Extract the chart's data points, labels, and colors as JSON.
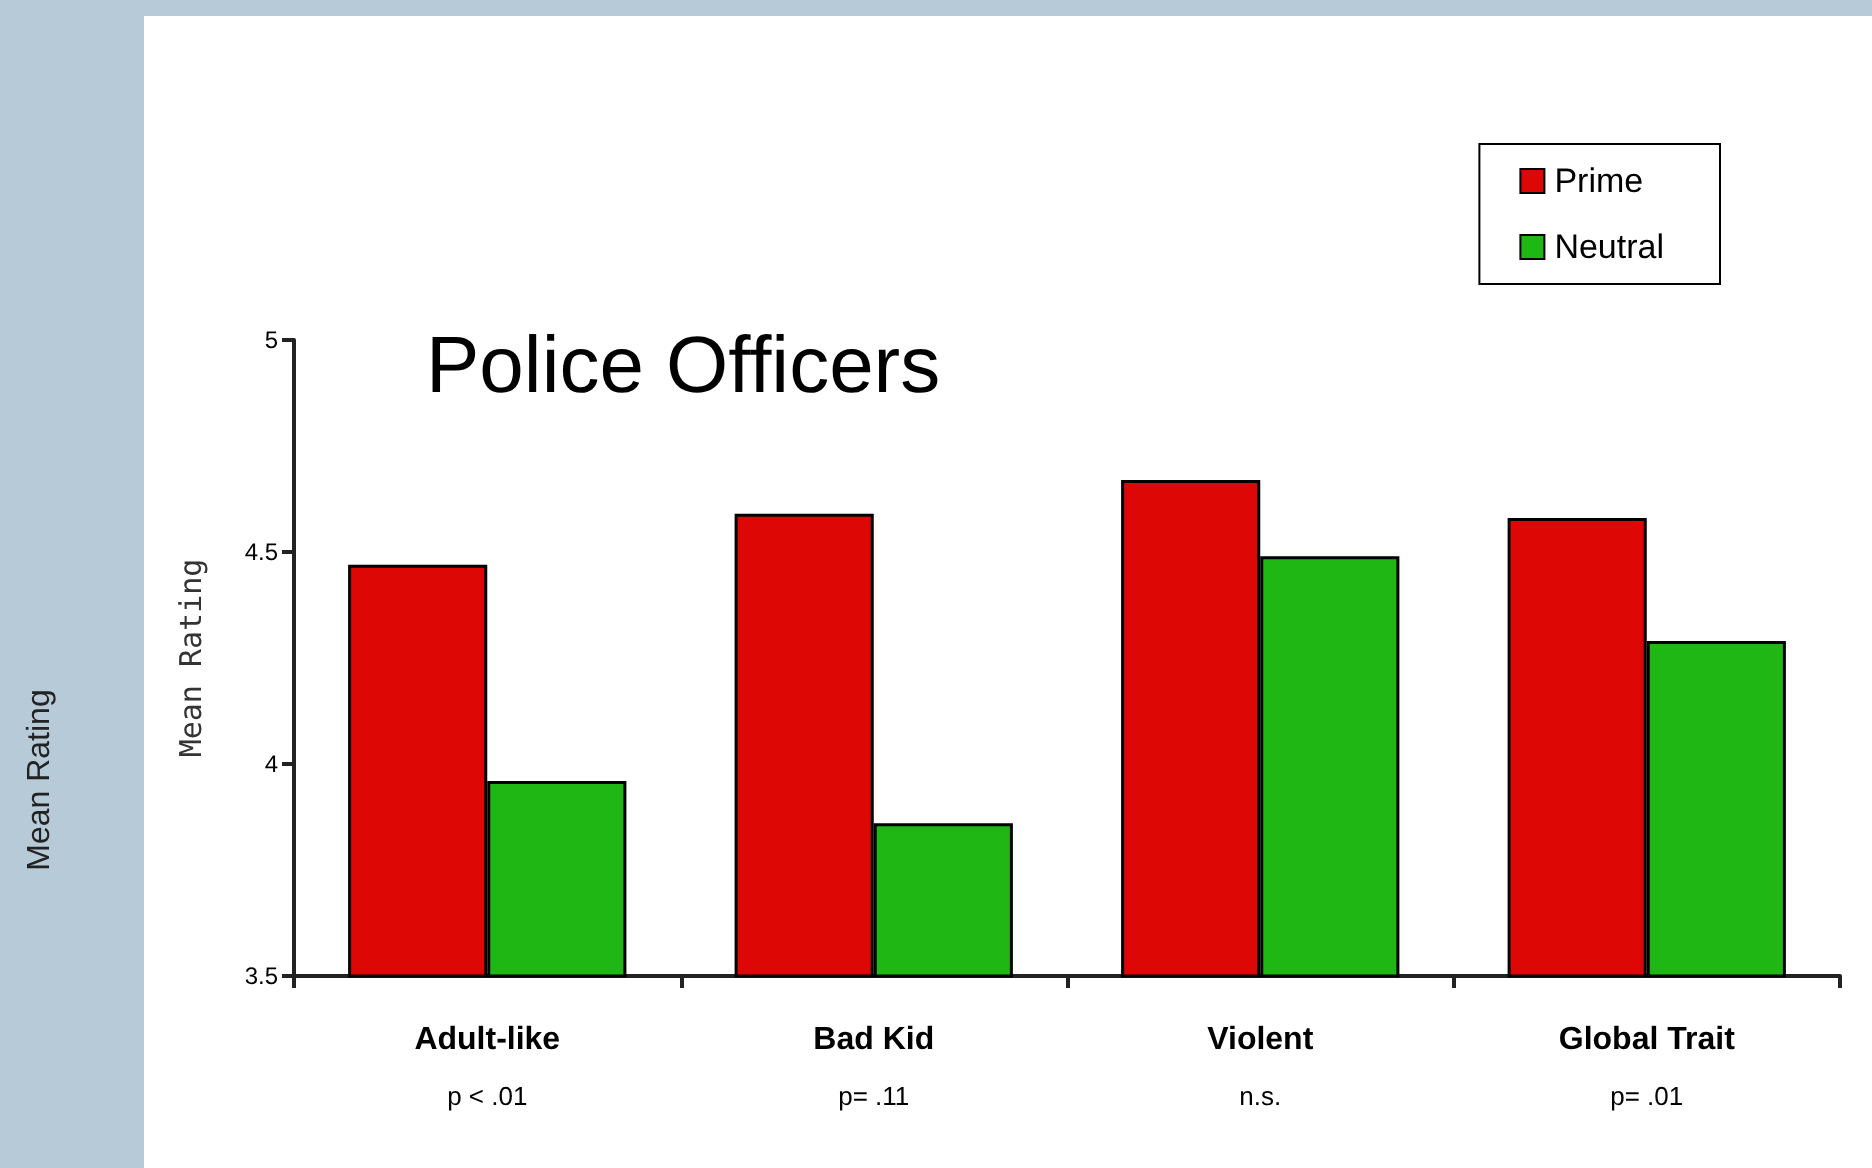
{
  "chart_data": {
    "type": "bar",
    "title": "Police Officers",
    "ylabel": "Mean Rating",
    "categories": [
      "Adult-like",
      "Bad Kid",
      "Violent",
      "Global Trait"
    ],
    "series": [
      {
        "name": "Prime",
        "color": "#dd0806",
        "values": [
          4.47,
          4.59,
          4.67,
          4.58
        ]
      },
      {
        "name": "Neutral",
        "color": "#1fb714",
        "values": [
          3.96,
          3.86,
          4.49,
          4.29
        ]
      }
    ],
    "ylim": [
      3.5,
      5
    ],
    "yticks": [
      3.5,
      4,
      4.5,
      5
    ],
    "grid": false,
    "legend": "top right",
    "annotations": [
      "p < .01",
      "p= .11",
      "n.s.",
      "p= .01",
      "Mean Rating"
    ]
  }
}
